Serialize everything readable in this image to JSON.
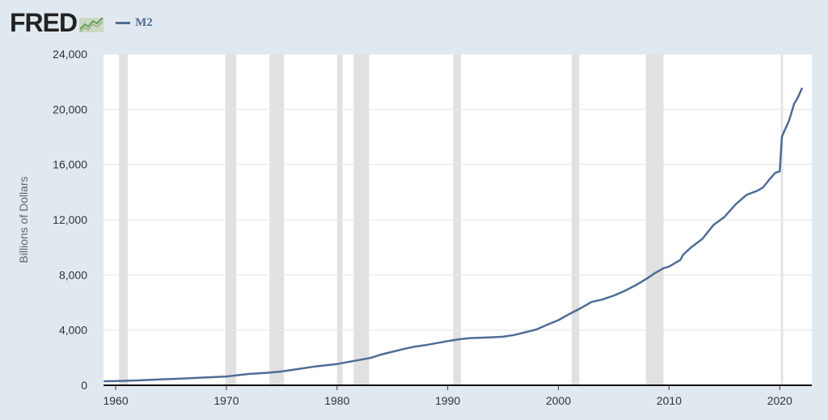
{
  "header": {
    "logo_text": "FRED",
    "legend_label": "M2"
  },
  "colors": {
    "series": "#4e6d96",
    "recession": "#e1e1e1",
    "grid": "#e6e6e6",
    "background": "#e1e9f0"
  },
  "chart_data": {
    "type": "line",
    "title": "",
    "xlabel": "",
    "ylabel": "Billions of Dollars",
    "xlim": [
      1958.9,
      2022.9
    ],
    "ylim": [
      0,
      24000
    ],
    "x_ticks": [
      1960,
      1970,
      1980,
      1990,
      2000,
      2010,
      2020
    ],
    "y_ticks": [
      0,
      4000,
      8000,
      12000,
      16000,
      20000,
      24000
    ],
    "y_tick_labels": [
      "0",
      "4,000",
      "8,000",
      "12,000",
      "16,000",
      "20,000",
      "24,000"
    ],
    "grid": true,
    "legend": "top-left",
    "recessions": [
      [
        1960.3,
        1961.1
      ],
      [
        1969.9,
        1970.9
      ],
      [
        1973.9,
        1975.2
      ],
      [
        1980.0,
        1980.5
      ],
      [
        1981.5,
        1982.9
      ],
      [
        1990.5,
        1991.2
      ],
      [
        2001.2,
        2001.9
      ],
      [
        2007.9,
        2009.5
      ],
      [
        2020.1,
        2020.3
      ]
    ],
    "series": [
      {
        "name": "M2",
        "x": [
          1959,
          1960,
          1962,
          1964,
          1966,
          1968,
          1970,
          1972,
          1974,
          1975,
          1976,
          1978,
          1980,
          1982,
          1983,
          1984,
          1986,
          1987,
          1988,
          1990,
          1991,
          1992,
          1994,
          1995,
          1996,
          1998,
          1999,
          2000,
          2001,
          2002,
          2003,
          2004,
          2005,
          2006,
          2007,
          2008,
          2008.7,
          2009.5,
          2010,
          2011,
          2011.3,
          2012,
          2013,
          2014,
          2015,
          2016,
          2017,
          2018,
          2018.5,
          2019,
          2019.6,
          2020.0,
          2020.2,
          2020.4,
          2020.8,
          2021.0,
          2021.3,
          2021.6,
          2022.0
        ],
        "values": [
          290,
          310,
          350,
          420,
          480,
          560,
          640,
          820,
          920,
          1000,
          1120,
          1360,
          1540,
          1830,
          1980,
          2230,
          2620,
          2800,
          2910,
          3200,
          3330,
          3420,
          3480,
          3520,
          3640,
          4040,
          4390,
          4720,
          5170,
          5580,
          6040,
          6220,
          6500,
          6840,
          7260,
          7740,
          8120,
          8480,
          8600,
          9070,
          9480,
          10000,
          10600,
          11600,
          12200,
          13100,
          13800,
          14100,
          14350,
          14850,
          15400,
          15500,
          18000,
          18400,
          19100,
          19600,
          20400,
          20800,
          21500
        ]
      }
    ]
  }
}
